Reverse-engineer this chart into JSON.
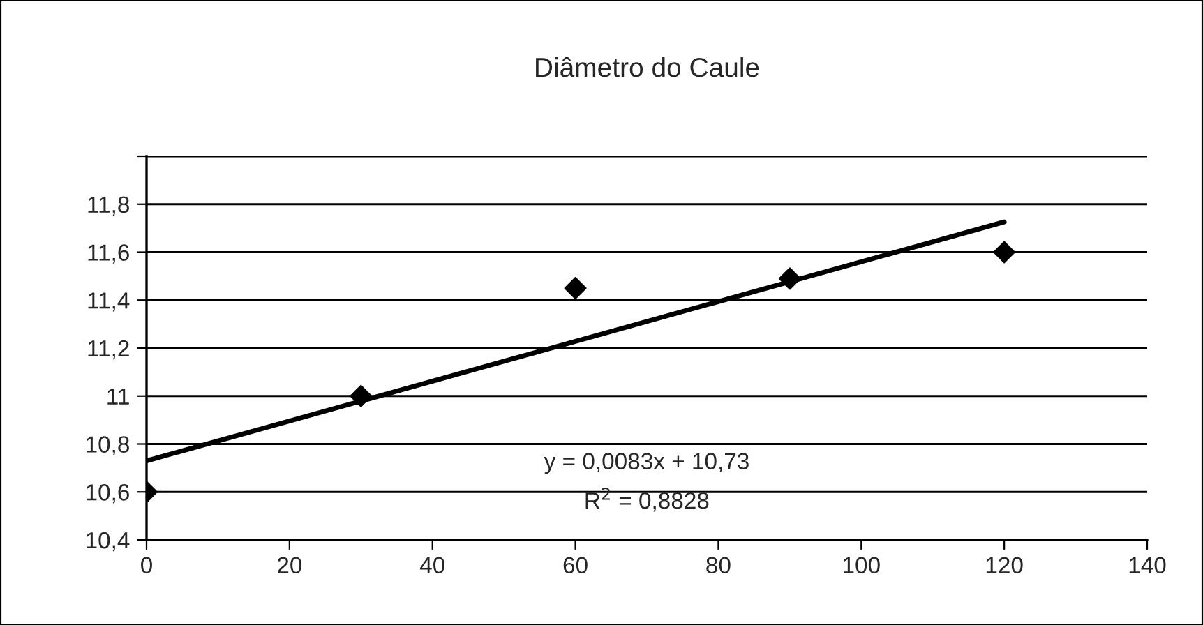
{
  "chart_data": {
    "type": "scatter",
    "title": "Diâmetro do Caule",
    "x": [
      0,
      30,
      60,
      90,
      120
    ],
    "series": [
      {
        "color": "#000000",
        "marker": "diamond",
        "values": [
          10.6,
          11.0,
          11.45,
          11.49,
          11.6
        ]
      },
      {
        "type": "line",
        "color": "#000000",
        "marker": "none",
        "line_style": "solid",
        "x": [
          0,
          120
        ],
        "values": [
          10.73,
          11.726
        ]
      }
    ],
    "annotations": [
      "y = 0,0083x + 10,73",
      "R$^{2}$ = 0,8828"
    ],
    "xlim": [
      0,
      140
    ],
    "xticks": [
      0,
      20,
      40,
      60,
      80,
      100,
      120,
      140
    ],
    "ylim": [
      10.4,
      12
    ],
    "yticks": [
      {
        "value": 10.4,
        "label": "10,4"
      },
      {
        "value": 10.6,
        "label": "10,6"
      },
      {
        "value": 10.8,
        "label": "10,8"
      },
      {
        "value": 11,
        "label": "11"
      },
      {
        "value": 11.2,
        "label": "11,2"
      },
      {
        "value": 11.4,
        "label": "11,4"
      },
      {
        "value": 11.6,
        "label": "11,6"
      },
      {
        "value": 11.8,
        "label": "11,8"
      },
      {
        "value": 12,
        "label": null
      }
    ],
    "grid": "y",
    "legend": false
  }
}
